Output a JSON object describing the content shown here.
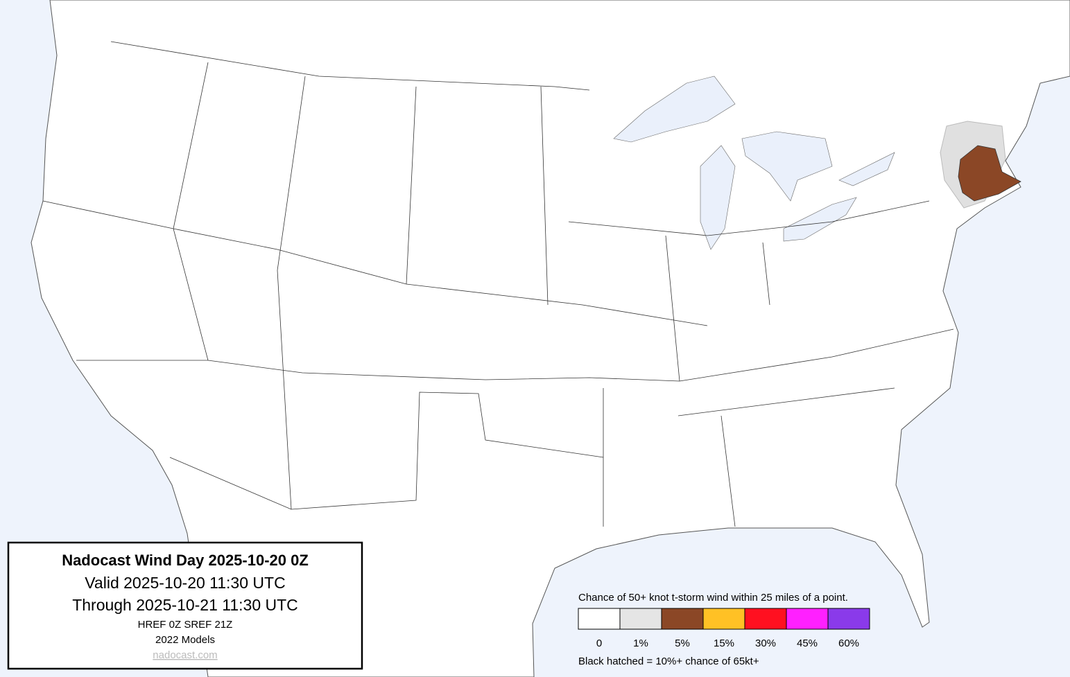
{
  "title_box": {
    "title": "Nadocast Wind Day 2025-10-20 0Z",
    "valid": "Valid 2025-10-20 11:30 UTC",
    "through": "Through 2025-10-21 11:30 UTC",
    "models": "HREF 0Z SREF 21Z",
    "model_year": "2022 Models",
    "link": "nadocast.com"
  },
  "legend": {
    "caption": "Chance of 50+ knot t-storm wind within 25 miles of a point.",
    "items": [
      {
        "label": "0",
        "color": "#ffffff"
      },
      {
        "label": "1%",
        "color": "#e5e5e5"
      },
      {
        "label": "5%",
        "color": "#8b4726"
      },
      {
        "label": "15%",
        "color": "#ffc125"
      },
      {
        "label": "30%",
        "color": "#ff1020"
      },
      {
        "label": "45%",
        "color": "#ff20ff"
      },
      {
        "label": "60%",
        "color": "#8a3aea"
      }
    ],
    "note": "Black hatched = 10%+ chance of 65kt+"
  }
}
